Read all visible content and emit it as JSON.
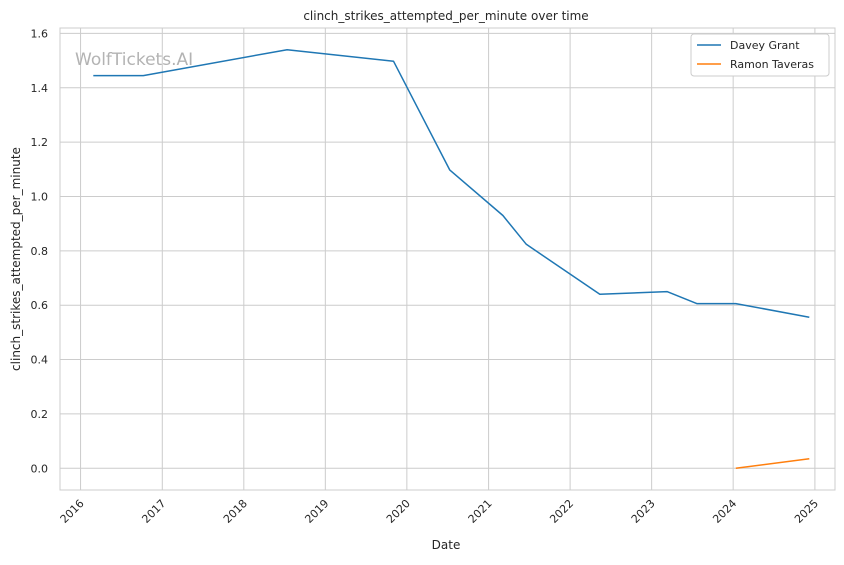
{
  "chart_data": {
    "type": "line",
    "title": "clinch_strikes_attempted_per_minute over time",
    "xlabel": "Date",
    "ylabel": "clinch_strikes_attempted_per_minute",
    "watermark": "WolfTickets.AI",
    "x_axis_type": "date",
    "xlim": [
      "2015-10-01",
      "2025-04-01"
    ],
    "ylim": [
      -0.08,
      1.62
    ],
    "x_ticks": [
      "2016",
      "2017",
      "2018",
      "2019",
      "2020",
      "2021",
      "2022",
      "2023",
      "2024",
      "2025"
    ],
    "x_tick_dates": [
      "2016-01-01",
      "2017-01-01",
      "2018-01-01",
      "2019-01-01",
      "2020-01-01",
      "2021-01-01",
      "2022-01-01",
      "2023-01-01",
      "2024-01-01",
      "2025-01-01"
    ],
    "y_ticks": [
      "0.0",
      "0.2",
      "0.4",
      "0.6",
      "0.8",
      "1.0",
      "1.2",
      "1.4",
      "1.6"
    ],
    "y_tick_values": [
      0,
      0.2,
      0.4,
      0.6,
      0.8,
      1.0,
      1.2,
      1.4,
      1.6
    ],
    "grid": true,
    "legend_position": "top-right",
    "series": [
      {
        "name": "Davey Grant",
        "color": "#1f77b4",
        "points": [
          {
            "x": "2016-02-27",
            "y": 1.445
          },
          {
            "x": "2016-10-08",
            "y": 1.445
          },
          {
            "x": "2018-07-14",
            "y": 1.54
          },
          {
            "x": "2019-11-02",
            "y": 1.498
          },
          {
            "x": "2020-07-11",
            "y": 1.098
          },
          {
            "x": "2021-03-06",
            "y": 0.93
          },
          {
            "x": "2021-06-19",
            "y": 0.824
          },
          {
            "x": "2022-05-14",
            "y": 0.64
          },
          {
            "x": "2023-03-11",
            "y": 0.65
          },
          {
            "x": "2023-07-22",
            "y": 0.606
          },
          {
            "x": "2024-01-13",
            "y": 0.606
          },
          {
            "x": "2024-12-07",
            "y": 0.556
          }
        ]
      },
      {
        "name": "Ramon Taveras",
        "color": "#ff7f0e",
        "points": [
          {
            "x": "2024-01-13",
            "y": 0.0
          },
          {
            "x": "2024-12-07",
            "y": 0.035
          }
        ]
      }
    ]
  }
}
